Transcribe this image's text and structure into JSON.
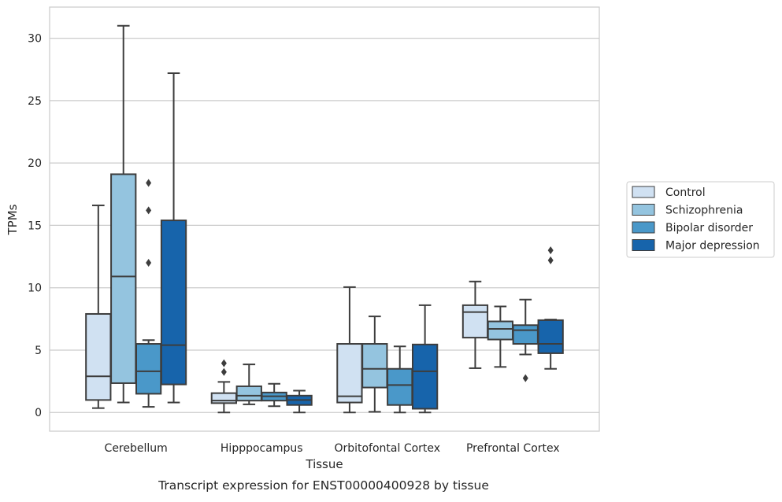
{
  "chart_data": {
    "type": "box",
    "title": "",
    "caption": "Transcript expression for ENST00000400928 by tissue",
    "xlabel": "Tissue",
    "ylabel": "TPMs",
    "ylim": [
      -1.5,
      32.5
    ],
    "yticks": [
      0,
      5,
      10,
      15,
      20,
      25,
      30
    ],
    "grid": "horizontal",
    "legend_position": "right",
    "categories": [
      "Cerebellum",
      "Hipppocampus",
      "Orbitofontal Cortex",
      "Prefrontal Cortex"
    ],
    "series": [
      {
        "name": "Control",
        "color": "#d0e1f2",
        "boxes": [
          {
            "whisker_low": 0.35,
            "q1": 1.0,
            "median": 2.9,
            "q3": 7.9,
            "whisker_high": 16.6,
            "outliers": []
          },
          {
            "whisker_low": 0.0,
            "q1": 0.75,
            "median": 0.95,
            "q3": 1.55,
            "whisker_high": 2.45,
            "outliers": [
              3.25,
              3.95
            ]
          },
          {
            "whisker_low": 0.0,
            "q1": 0.8,
            "median": 1.3,
            "q3": 5.5,
            "whisker_high": 10.05,
            "outliers": []
          },
          {
            "whisker_low": 3.55,
            "q1": 6.0,
            "median": 8.05,
            "q3": 8.6,
            "whisker_high": 10.5,
            "outliers": []
          }
        ]
      },
      {
        "name": "Schizophrenia",
        "color": "#94c4df",
        "boxes": [
          {
            "whisker_low": 0.8,
            "q1": 2.35,
            "median": 10.9,
            "q3": 19.1,
            "whisker_high": 31.0,
            "outliers": []
          },
          {
            "whisker_low": 0.65,
            "q1": 0.95,
            "median": 1.35,
            "q3": 2.1,
            "whisker_high": 3.85,
            "outliers": []
          },
          {
            "whisker_low": 0.05,
            "q1": 2.0,
            "median": 3.5,
            "q3": 5.5,
            "whisker_high": 7.7,
            "outliers": []
          },
          {
            "whisker_low": 3.65,
            "q1": 5.85,
            "median": 6.7,
            "q3": 7.3,
            "whisker_high": 8.5,
            "outliers": []
          }
        ]
      },
      {
        "name": "Bipolar disorder",
        "color": "#4a98c9",
        "boxes": [
          {
            "whisker_low": 0.45,
            "q1": 1.5,
            "median": 3.3,
            "q3": 5.5,
            "whisker_high": 5.8,
            "outliers": [
              12.0,
              16.2,
              18.4
            ]
          },
          {
            "whisker_low": 0.5,
            "q1": 0.95,
            "median": 1.3,
            "q3": 1.6,
            "whisker_high": 2.3,
            "outliers": []
          },
          {
            "whisker_low": 0.0,
            "q1": 0.6,
            "median": 2.2,
            "q3": 3.5,
            "whisker_high": 5.3,
            "outliers": []
          },
          {
            "whisker_low": 4.65,
            "q1": 5.5,
            "median": 6.6,
            "q3": 7.0,
            "whisker_high": 9.05,
            "outliers": [
              2.75
            ]
          }
        ]
      },
      {
        "name": "Major depression",
        "color": "#1764ab",
        "boxes": [
          {
            "whisker_low": 0.8,
            "q1": 2.25,
            "median": 5.4,
            "q3": 15.4,
            "whisker_high": 27.2,
            "outliers": []
          },
          {
            "whisker_low": 0.0,
            "q1": 0.6,
            "median": 1.0,
            "q3": 1.35,
            "whisker_high": 1.75,
            "outliers": []
          },
          {
            "whisker_low": 0.0,
            "q1": 0.3,
            "median": 3.3,
            "q3": 5.45,
            "whisker_high": 8.6,
            "outliers": []
          },
          {
            "whisker_low": 3.5,
            "q1": 4.75,
            "median": 5.5,
            "q3": 7.4,
            "whisker_high": 7.45,
            "outliers": [
              12.2,
              13.0
            ]
          }
        ]
      }
    ]
  }
}
